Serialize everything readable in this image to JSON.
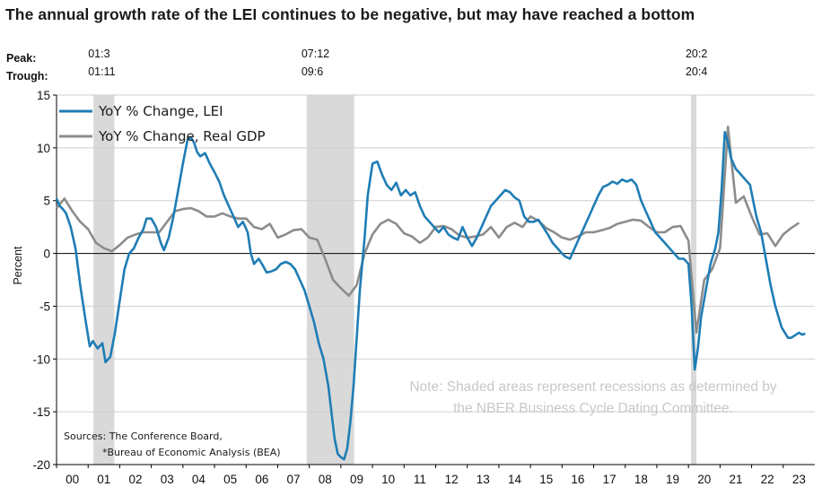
{
  "chart_data": {
    "type": "line",
    "title": "The annual growth rate of the LEI continues to be negative, but may have reached a bottom",
    "ylabel": "Percent",
    "xlabel": "",
    "ylim": [
      -20,
      15
    ],
    "yticks": [
      15,
      10,
      5,
      0,
      -5,
      -10,
      -15,
      -20
    ],
    "xlim": [
      2000.0,
      2024.0
    ],
    "x_tick_labels": [
      "00",
      "01",
      "02",
      "03",
      "04",
      "05",
      "06",
      "07",
      "08",
      "09",
      "10",
      "11",
      "12",
      "13",
      "14",
      "15",
      "16",
      "17",
      "18",
      "19",
      "20",
      "21",
      "22",
      "23"
    ],
    "peak_label": "Peak:",
    "trough_label": "Trough:",
    "recessions": [
      {
        "peak": "01:3",
        "trough": "01:11",
        "start": 2001.17,
        "end": 2001.83
      },
      {
        "peak": "07:12",
        "trough": "09:6",
        "start": 2007.92,
        "end": 2009.42
      },
      {
        "peak": "20:2",
        "trough": "20:4",
        "start": 2020.08,
        "end": 2020.25
      }
    ],
    "series": [
      {
        "name": "YoY % Change, LEI",
        "color": "#1f7db5",
        "points": [
          [
            2000.0,
            5.2
          ],
          [
            2000.1,
            4.5
          ],
          [
            2000.2,
            4.2
          ],
          [
            2000.3,
            3.8
          ],
          [
            2000.45,
            2.5
          ],
          [
            2000.6,
            0.5
          ],
          [
            2000.75,
            -3.0
          ],
          [
            2000.9,
            -6.0
          ],
          [
            2001.05,
            -8.8
          ],
          [
            2001.15,
            -8.3
          ],
          [
            2001.3,
            -9.0
          ],
          [
            2001.45,
            -8.5
          ],
          [
            2001.55,
            -10.3
          ],
          [
            2001.7,
            -9.8
          ],
          [
            2001.85,
            -7.5
          ],
          [
            2002.0,
            -4.5
          ],
          [
            2002.15,
            -1.5
          ],
          [
            2002.3,
            0.0
          ],
          [
            2002.45,
            0.5
          ],
          [
            2002.6,
            1.5
          ],
          [
            2002.75,
            2.3
          ],
          [
            2002.85,
            3.3
          ],
          [
            2003.0,
            3.3
          ],
          [
            2003.15,
            2.5
          ],
          [
            2003.3,
            1.0
          ],
          [
            2003.4,
            0.3
          ],
          [
            2003.55,
            1.5
          ],
          [
            2003.7,
            3.5
          ],
          [
            2003.85,
            6.0
          ],
          [
            2004.0,
            8.5
          ],
          [
            2004.15,
            10.8
          ],
          [
            2004.25,
            11.0
          ],
          [
            2004.35,
            10.5
          ],
          [
            2004.45,
            9.6
          ],
          [
            2004.55,
            9.2
          ],
          [
            2004.7,
            9.5
          ],
          [
            2004.85,
            8.5
          ],
          [
            2005.0,
            7.7
          ],
          [
            2005.15,
            6.8
          ],
          [
            2005.3,
            5.5
          ],
          [
            2005.45,
            4.5
          ],
          [
            2005.6,
            3.5
          ],
          [
            2005.75,
            2.5
          ],
          [
            2005.9,
            3.0
          ],
          [
            2006.05,
            2.0
          ],
          [
            2006.15,
            0.0
          ],
          [
            2006.25,
            -1.0
          ],
          [
            2006.4,
            -0.5
          ],
          [
            2006.5,
            -1.0
          ],
          [
            2006.65,
            -1.8
          ],
          [
            2006.8,
            -1.7
          ],
          [
            2006.95,
            -1.5
          ],
          [
            2007.1,
            -1.0
          ],
          [
            2007.25,
            -0.8
          ],
          [
            2007.4,
            -1.0
          ],
          [
            2007.55,
            -1.5
          ],
          [
            2007.7,
            -2.5
          ],
          [
            2007.85,
            -3.5
          ],
          [
            2008.0,
            -5.0
          ],
          [
            2008.15,
            -6.5
          ],
          [
            2008.3,
            -8.5
          ],
          [
            2008.45,
            -10.0
          ],
          [
            2008.6,
            -12.5
          ],
          [
            2008.7,
            -15.0
          ],
          [
            2008.8,
            -17.5
          ],
          [
            2008.9,
            -19.0
          ],
          [
            2009.0,
            -19.3
          ],
          [
            2009.1,
            -19.5
          ],
          [
            2009.2,
            -18.5
          ],
          [
            2009.3,
            -16.0
          ],
          [
            2009.4,
            -12.5
          ],
          [
            2009.5,
            -8.0
          ],
          [
            2009.6,
            -3.5
          ],
          [
            2009.75,
            1.5
          ],
          [
            2009.85,
            5.5
          ],
          [
            2010.0,
            8.5
          ],
          [
            2010.15,
            8.7
          ],
          [
            2010.3,
            7.5
          ],
          [
            2010.45,
            6.5
          ],
          [
            2010.6,
            6.0
          ],
          [
            2010.75,
            6.7
          ],
          [
            2010.9,
            5.5
          ],
          [
            2011.05,
            6.0
          ],
          [
            2011.2,
            5.5
          ],
          [
            2011.35,
            5.8
          ],
          [
            2011.5,
            4.5
          ],
          [
            2011.65,
            3.5
          ],
          [
            2011.8,
            3.0
          ],
          [
            2011.95,
            2.5
          ],
          [
            2012.1,
            2.0
          ],
          [
            2012.25,
            2.5
          ],
          [
            2012.4,
            1.8
          ],
          [
            2012.55,
            1.5
          ],
          [
            2012.7,
            1.3
          ],
          [
            2012.85,
            2.5
          ],
          [
            2013.0,
            1.5
          ],
          [
            2013.15,
            0.7
          ],
          [
            2013.3,
            1.5
          ],
          [
            2013.45,
            2.5
          ],
          [
            2013.6,
            3.5
          ],
          [
            2013.75,
            4.5
          ],
          [
            2013.9,
            5.0
          ],
          [
            2014.05,
            5.5
          ],
          [
            2014.2,
            6.0
          ],
          [
            2014.35,
            5.8
          ],
          [
            2014.5,
            5.3
          ],
          [
            2014.65,
            5.0
          ],
          [
            2014.8,
            3.5
          ],
          [
            2014.95,
            3.0
          ],
          [
            2015.1,
            3.0
          ],
          [
            2015.25,
            3.2
          ],
          [
            2015.4,
            2.5
          ],
          [
            2015.55,
            1.8
          ],
          [
            2015.7,
            1.0
          ],
          [
            2015.85,
            0.5
          ],
          [
            2016.0,
            0.0
          ],
          [
            2016.1,
            -0.3
          ],
          [
            2016.25,
            -0.5
          ],
          [
            2016.4,
            0.5
          ],
          [
            2016.55,
            1.5
          ],
          [
            2016.7,
            2.5
          ],
          [
            2016.85,
            3.5
          ],
          [
            2017.0,
            4.5
          ],
          [
            2017.15,
            5.5
          ],
          [
            2017.3,
            6.3
          ],
          [
            2017.45,
            6.5
          ],
          [
            2017.6,
            6.8
          ],
          [
            2017.75,
            6.6
          ],
          [
            2017.9,
            7.0
          ],
          [
            2018.05,
            6.8
          ],
          [
            2018.2,
            7.0
          ],
          [
            2018.35,
            6.5
          ],
          [
            2018.5,
            5.0
          ],
          [
            2018.65,
            4.0
          ],
          [
            2018.8,
            3.0
          ],
          [
            2018.95,
            2.0
          ],
          [
            2019.1,
            1.5
          ],
          [
            2019.25,
            1.0
          ],
          [
            2019.4,
            0.5
          ],
          [
            2019.55,
            0.0
          ],
          [
            2019.7,
            -0.5
          ],
          [
            2019.85,
            -0.5
          ],
          [
            2020.0,
            -1.0
          ],
          [
            2020.1,
            -5.0
          ],
          [
            2020.2,
            -11.0
          ],
          [
            2020.3,
            -9.0
          ],
          [
            2020.4,
            -6.0
          ],
          [
            2020.55,
            -3.5
          ],
          [
            2020.7,
            -1.0
          ],
          [
            2020.85,
            0.5
          ],
          [
            2020.95,
            2.0
          ],
          [
            2021.05,
            6.0
          ],
          [
            2021.15,
            11.5
          ],
          [
            2021.25,
            10.5
          ],
          [
            2021.35,
            9.0
          ],
          [
            2021.5,
            8.0
          ],
          [
            2021.65,
            7.5
          ],
          [
            2021.8,
            7.0
          ],
          [
            2021.95,
            6.5
          ],
          [
            2022.05,
            5.0
          ],
          [
            2022.15,
            3.5
          ],
          [
            2022.3,
            2.0
          ],
          [
            2022.45,
            -0.5
          ],
          [
            2022.6,
            -3.0
          ],
          [
            2022.75,
            -5.0
          ],
          [
            2022.85,
            -6.0
          ],
          [
            2022.95,
            -7.0
          ],
          [
            2023.05,
            -7.5
          ],
          [
            2023.15,
            -8.0
          ],
          [
            2023.25,
            -8.0
          ],
          [
            2023.35,
            -7.8
          ],
          [
            2023.5,
            -7.5
          ],
          [
            2023.6,
            -7.7
          ],
          [
            2023.7,
            -7.6
          ]
        ]
      },
      {
        "name": "YoY % Change, Real GDP",
        "color": "#8c8c8c",
        "points": [
          [
            2000.0,
            4.3
          ],
          [
            2000.25,
            5.2
          ],
          [
            2000.5,
            4.0
          ],
          [
            2000.75,
            3.0
          ],
          [
            2001.0,
            2.3
          ],
          [
            2001.25,
            1.0
          ],
          [
            2001.5,
            0.5
          ],
          [
            2001.75,
            0.2
          ],
          [
            2002.0,
            0.8
          ],
          [
            2002.25,
            1.5
          ],
          [
            2002.5,
            1.8
          ],
          [
            2002.75,
            2.0
          ],
          [
            2003.0,
            2.0
          ],
          [
            2003.25,
            2.0
          ],
          [
            2003.5,
            3.0
          ],
          [
            2003.75,
            4.0
          ],
          [
            2004.0,
            4.2
          ],
          [
            2004.25,
            4.3
          ],
          [
            2004.5,
            4.0
          ],
          [
            2004.75,
            3.5
          ],
          [
            2005.0,
            3.5
          ],
          [
            2005.25,
            3.8
          ],
          [
            2005.5,
            3.5
          ],
          [
            2005.75,
            3.3
          ],
          [
            2006.0,
            3.3
          ],
          [
            2006.25,
            2.5
          ],
          [
            2006.5,
            2.3
          ],
          [
            2006.75,
            2.8
          ],
          [
            2007.0,
            1.5
          ],
          [
            2007.25,
            1.8
          ],
          [
            2007.5,
            2.2
          ],
          [
            2007.75,
            2.3
          ],
          [
            2008.0,
            1.5
          ],
          [
            2008.25,
            1.3
          ],
          [
            2008.5,
            -0.5
          ],
          [
            2008.75,
            -2.5
          ],
          [
            2009.0,
            -3.3
          ],
          [
            2009.25,
            -4.0
          ],
          [
            2009.5,
            -3.0
          ],
          [
            2009.75,
            0.0
          ],
          [
            2010.0,
            1.8
          ],
          [
            2010.25,
            2.8
          ],
          [
            2010.5,
            3.2
          ],
          [
            2010.75,
            2.8
          ],
          [
            2011.0,
            1.9
          ],
          [
            2011.25,
            1.6
          ],
          [
            2011.5,
            1.0
          ],
          [
            2011.75,
            1.5
          ],
          [
            2012.0,
            2.5
          ],
          [
            2012.25,
            2.6
          ],
          [
            2012.5,
            2.3
          ],
          [
            2012.75,
            1.7
          ],
          [
            2013.0,
            1.5
          ],
          [
            2013.25,
            1.6
          ],
          [
            2013.5,
            1.8
          ],
          [
            2013.75,
            2.5
          ],
          [
            2014.0,
            1.5
          ],
          [
            2014.25,
            2.5
          ],
          [
            2014.5,
            2.9
          ],
          [
            2014.75,
            2.5
          ],
          [
            2015.0,
            3.5
          ],
          [
            2015.25,
            3.1
          ],
          [
            2015.5,
            2.4
          ],
          [
            2015.75,
            2.0
          ],
          [
            2016.0,
            1.5
          ],
          [
            2016.25,
            1.3
          ],
          [
            2016.5,
            1.6
          ],
          [
            2016.75,
            2.0
          ],
          [
            2017.0,
            2.0
          ],
          [
            2017.25,
            2.2
          ],
          [
            2017.5,
            2.4
          ],
          [
            2017.75,
            2.8
          ],
          [
            2018.0,
            3.0
          ],
          [
            2018.25,
            3.2
          ],
          [
            2018.5,
            3.1
          ],
          [
            2018.75,
            2.5
          ],
          [
            2019.0,
            2.0
          ],
          [
            2019.25,
            2.0
          ],
          [
            2019.5,
            2.5
          ],
          [
            2019.75,
            2.6
          ],
          [
            2020.0,
            1.2
          ],
          [
            2020.25,
            -7.5
          ],
          [
            2020.5,
            -2.5
          ],
          [
            2020.75,
            -1.5
          ],
          [
            2021.0,
            0.5
          ],
          [
            2021.25,
            12.0
          ],
          [
            2021.5,
            4.8
          ],
          [
            2021.75,
            5.4
          ],
          [
            2022.0,
            3.5
          ],
          [
            2022.25,
            1.8
          ],
          [
            2022.5,
            1.9
          ],
          [
            2022.75,
            0.7
          ],
          [
            2023.0,
            1.8
          ],
          [
            2023.25,
            2.4
          ],
          [
            2023.5,
            2.9
          ]
        ]
      }
    ],
    "note_lines": [
      "Note: Shaded areas represent recessions as determined by",
      "the NBER Business Cycle Dating Committee."
    ],
    "sources": [
      "Sources: The Conference Board,",
      "*Bureau of Economic Analysis (BEA)"
    ],
    "legend_position": "top-left"
  }
}
